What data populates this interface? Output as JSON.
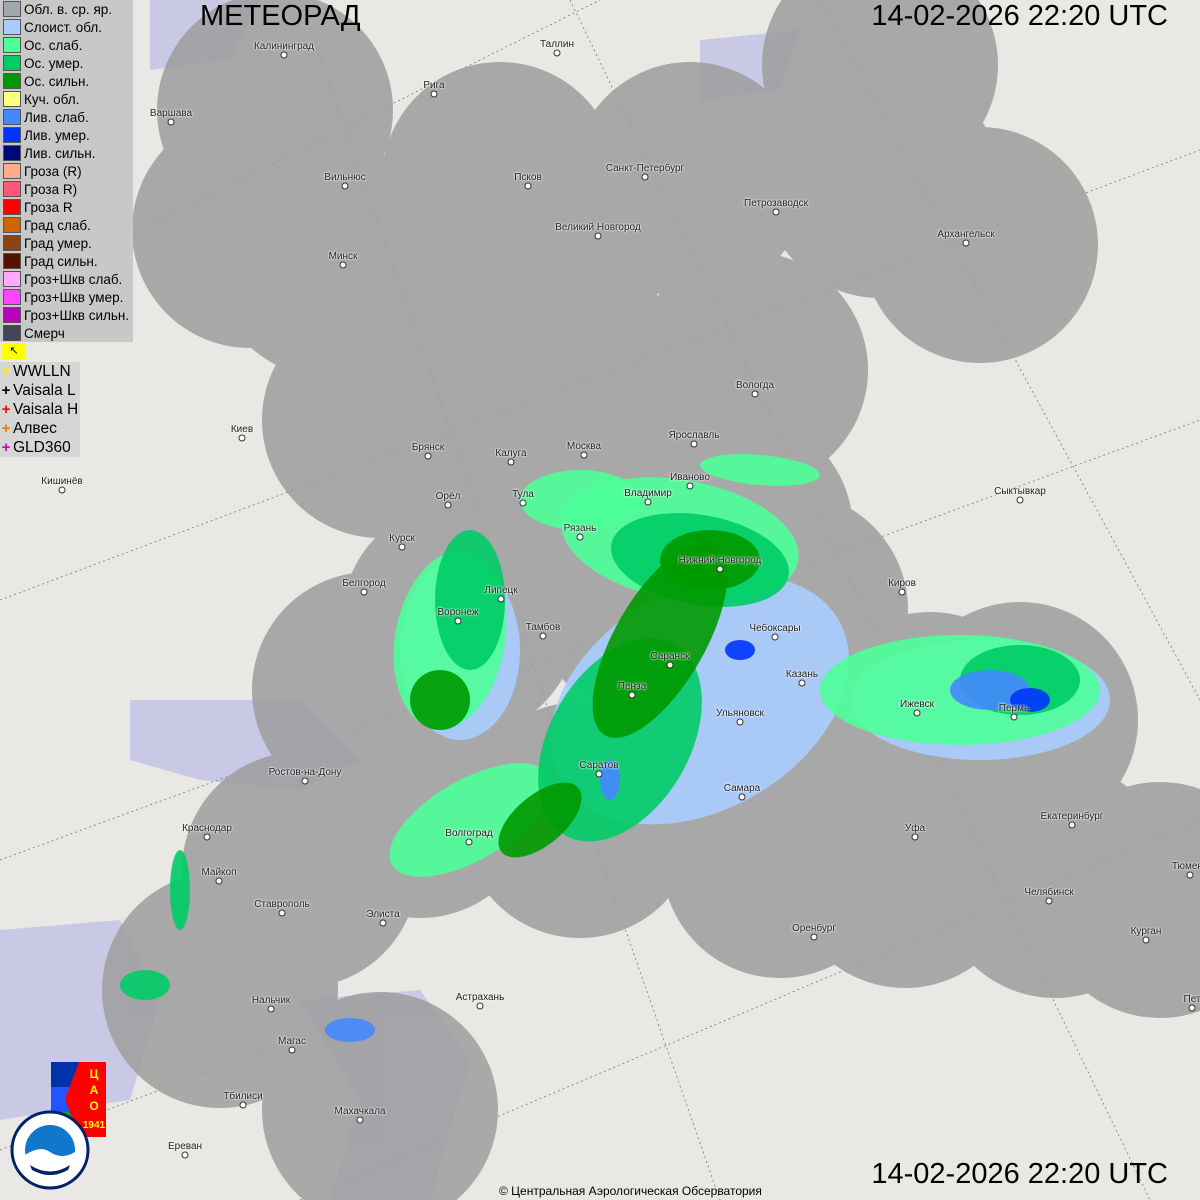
{
  "title": "МЕТЕОРАД",
  "timestamp": "14-02-2026  22:20 UTC",
  "copyright": "© Центральная Аэрологическая Обсерватория",
  "legend": [
    {
      "label": "Обл. в. ср. яр.",
      "color": "#a0a8b0"
    },
    {
      "label": "Слоист. обл.",
      "color": "#a8ccff"
    },
    {
      "label": "Ос. слаб.",
      "color": "#4cff99"
    },
    {
      "label": "Ос. умер.",
      "color": "#00cc66"
    },
    {
      "label": "Ос. сильн.",
      "color": "#009900"
    },
    {
      "label": "Куч. обл.",
      "color": "#ffff80"
    },
    {
      "label": "Лив. слаб.",
      "color": "#4488ff"
    },
    {
      "label": "Лив. умер.",
      "color": "#0033ff"
    },
    {
      "label": "Лив. сильн.",
      "color": "#000a77"
    },
    {
      "label": "Гроза (R)",
      "color": "#ffaa88"
    },
    {
      "label": "Гроза R)",
      "color": "#ff5577"
    },
    {
      "label": "Гроза R",
      "color": "#ff0000"
    },
    {
      "label": "Град слаб.",
      "color": "#cc6600"
    },
    {
      "label": "Град умер.",
      "color": "#884411"
    },
    {
      "label": "Град сильн.",
      "color": "#551100"
    },
    {
      "label": "Гроз+Шкв слаб.",
      "color": "#ffaaff"
    },
    {
      "label": "Гроз+Шкв умер.",
      "color": "#ff44ff"
    },
    {
      "label": "Гроз+Шкв сильн.",
      "color": "#bb00bb"
    },
    {
      "label": "Смерч",
      "color": "#444455"
    }
  ],
  "lightning_flag_icon": "flag-icon",
  "lightning": [
    {
      "label": "WWLLN",
      "color": "#ffee00"
    },
    {
      "label": "Vaisala L",
      "color": "#000000"
    },
    {
      "label": "Vaisala H",
      "color": "#ff0000"
    },
    {
      "label": "Алвес",
      "color": "#ee7700"
    },
    {
      "label": "GLD360",
      "color": "#cc00cc"
    }
  ],
  "logos": {
    "cao": "ЦАО 1941",
    "roshydromet": "РОСГИДРОМЕТ ROSHYDROMET"
  },
  "cities": [
    "Калининград",
    "Таллин",
    "Рига",
    "Варшава",
    "Вильнюс",
    "Псков",
    "Санкт-Петербург",
    "Петрозаводск",
    "Архангельск",
    "Великий Новгород",
    "Минск",
    "Вологда",
    "Киев",
    "Брянск",
    "Калуга",
    "Москва",
    "Ярославль",
    "Иваново",
    "Кишинёв",
    "Тула",
    "Владимир",
    "Сыктывкар",
    "Орёл",
    "Рязань",
    "Курск",
    "Нижний Новгород",
    "Липецк",
    "Белгород",
    "Киров",
    "Воронеж",
    "Тамбов",
    "Чебоксары",
    "Саранск",
    "Казань",
    "Пенза",
    "Ижевск",
    "Пермь",
    "Ульяновск",
    "Саратов",
    "Ростов-на-Дону",
    "Самара",
    "Краснодар",
    "Волгоград",
    "Уфа",
    "Екатеринбург",
    "Майкоп",
    "Тюмень",
    "Ставрополь",
    "Элиста",
    "Челябинск",
    "Оренбург",
    "Курган",
    "Астрахань",
    "Нальчик",
    "Пет",
    "Магас",
    "Тбилиси",
    "Махачкала",
    "Ереван"
  ]
}
